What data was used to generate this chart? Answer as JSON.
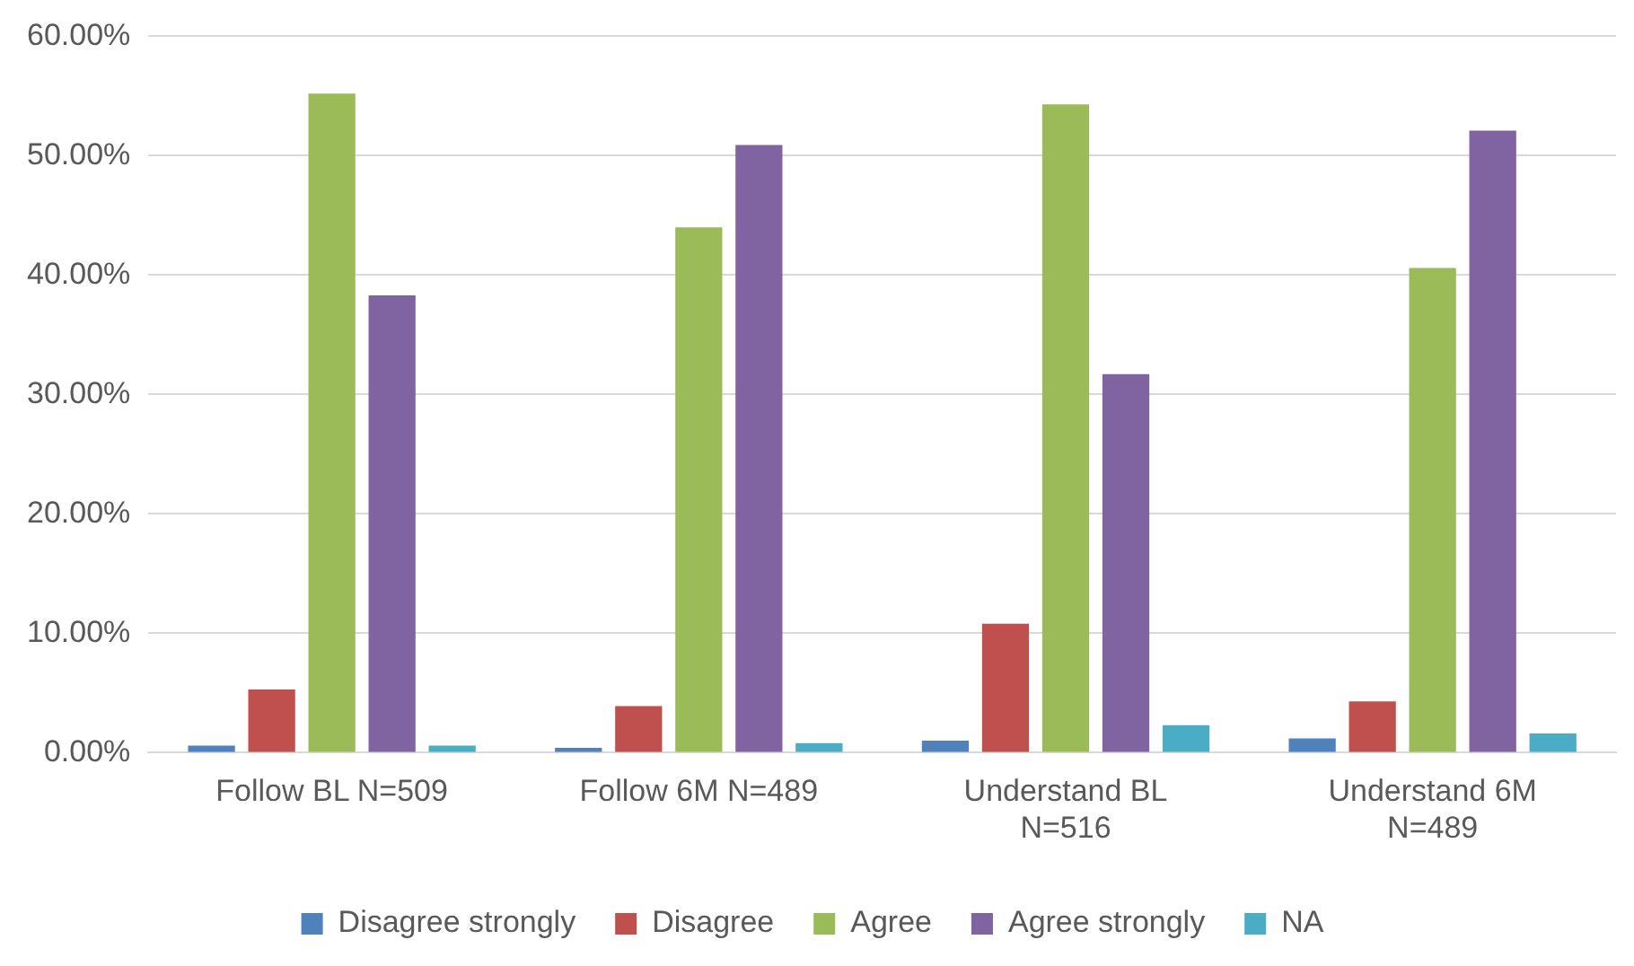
{
  "chart_data": {
    "type": "bar",
    "categories": [
      "Follow BL N=509",
      "Follow 6M N=489",
      "Understand BL N=516",
      "Understand 6M N=489"
    ],
    "series": [
      {
        "name": "Disagree strongly",
        "color": "#4f81bd",
        "values": [
          0.6,
          0.4,
          1.0,
          1.2
        ]
      },
      {
        "name": "Disagree",
        "color": "#c0504d",
        "values": [
          5.3,
          3.9,
          10.8,
          4.3
        ]
      },
      {
        "name": "Agree",
        "color": "#9bbb59",
        "values": [
          55.2,
          44.0,
          54.3,
          40.6
        ]
      },
      {
        "name": "Agree strongly",
        "color": "#8064a2",
        "values": [
          38.3,
          50.9,
          31.7,
          52.1
        ]
      },
      {
        "name": "NA",
        "color": "#4bacc6",
        "values": [
          0.6,
          0.8,
          2.3,
          1.6
        ]
      }
    ],
    "ylim": [
      0,
      60
    ],
    "yticks": [
      {
        "value": 0,
        "label": "0.00%"
      },
      {
        "value": 10,
        "label": "10.00%"
      },
      {
        "value": 20,
        "label": "20.00%"
      },
      {
        "value": 30,
        "label": "30.00%"
      },
      {
        "value": 40,
        "label": "40.00%"
      },
      {
        "value": 50,
        "label": "50.00%"
      },
      {
        "value": 60,
        "label": "60.00%"
      }
    ],
    "grid": "y",
    "legend": "bottom"
  }
}
